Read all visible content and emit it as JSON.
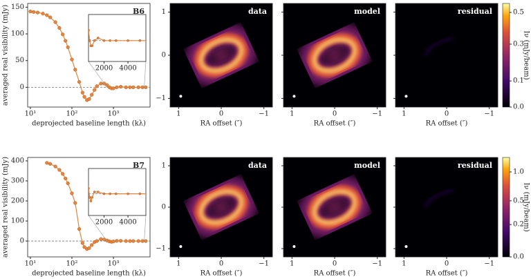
{
  "chart_data": [
    {
      "type": "line",
      "title": "B6",
      "log_x": true,
      "xlabel": "deprojected baseline length (kλ)",
      "ylabel": "averaged real visibility (mJy)",
      "xlim": [
        8.6,
        7600
      ],
      "ylim": [
        -37,
        157
      ],
      "xticks": [
        {
          "value": 10,
          "label": "10¹"
        },
        {
          "value": 100,
          "label": "10²"
        },
        {
          "value": 1000,
          "label": "10³"
        }
      ],
      "yticks": [
        0,
        50,
        100,
        150
      ],
      "hline": 0,
      "x": [
        10,
        12,
        15,
        20,
        25,
        30,
        40,
        50,
        60,
        70,
        80,
        100,
        120,
        150,
        180,
        200,
        230,
        260,
        300,
        350,
        400,
        500,
        600,
        700,
        800,
        900,
        1000,
        1200,
        1500,
        2000,
        2500,
        3000,
        4000,
        5000,
        6000
      ],
      "series": [
        {
          "color": "#e8833a",
          "values": [
            142,
            141,
            140,
            138,
            135,
            131,
            122,
            111,
            99,
            87,
            75,
            52,
            33,
            10,
            -10,
            -18,
            -24,
            -22,
            -14,
            -5,
            2,
            7,
            7,
            4,
            0,
            -2,
            -2,
            0,
            1,
            0,
            0,
            0,
            0,
            0,
            0
          ]
        }
      ],
      "inset": {
        "xlim": [
          700,
          5500
        ],
        "ylim": [
          -8,
          10
        ],
        "xticks": [
          2000,
          4000
        ]
      }
    },
    {
      "type": "image",
      "cmap": "inferno",
      "panels": [
        {
          "title": "data"
        },
        {
          "title": "model"
        },
        {
          "title": "residual"
        }
      ],
      "xlabel": "RA offset (″)",
      "xlim": [
        1.2,
        -1.2
      ],
      "ylim": [
        -1.2,
        1.2
      ],
      "xticks": [
        1,
        0,
        {
          "value": -1,
          "label": "−1"
        }
      ],
      "yticks": [
        {
          "value": -1,
          "label": "−1"
        },
        0,
        1
      ],
      "clabel": "Iν (mJy/beam)",
      "clim": [
        0,
        0.56
      ],
      "cpower": 0.8,
      "cticks": [
        {
          "value": 0,
          "label": "0.0"
        },
        0.1,
        0.3,
        0.5
      ]
    },
    {
      "type": "line",
      "title": "B7",
      "log_x": true,
      "xlabel": "deprojected baseline length (kλ)",
      "ylabel": "averaged real visibility (mJy)",
      "xlim": [
        8.6,
        7600
      ],
      "ylim": [
        -79,
        417
      ],
      "xticks": [
        {
          "value": 10,
          "label": "10¹"
        },
        {
          "value": 100,
          "label": "10²"
        },
        {
          "value": 1000,
          "label": "10³"
        }
      ],
      "yticks": [
        0,
        100,
        200,
        300,
        400
      ],
      "hline": 0,
      "x": [
        25,
        30,
        40,
        50,
        60,
        70,
        80,
        100,
        120,
        150,
        180,
        200,
        230,
        260,
        300,
        350,
        400,
        500,
        600,
        700,
        800,
        900,
        1000,
        1200,
        1500,
        2000,
        2500,
        3000,
        4000,
        5000,
        6000
      ],
      "series": [
        {
          "color": "#e8833a",
          "values": [
            390,
            385,
            372,
            355,
            335,
            312,
            288,
            238,
            190,
            60,
            -10,
            -30,
            -40,
            -35,
            -20,
            -5,
            0,
            10,
            8,
            3,
            -2,
            -4,
            -2,
            1,
            1,
            0,
            0,
            0,
            0,
            0,
            0
          ]
        }
      ],
      "inset": {
        "xlim": [
          700,
          5500
        ],
        "ylim": [
          -12,
          14
        ],
        "xticks": [
          2000,
          4000
        ]
      }
    },
    {
      "type": "image",
      "cmap": "inferno",
      "panels": [
        {
          "title": "data"
        },
        {
          "title": "model"
        },
        {
          "title": "residual"
        }
      ],
      "xlabel": "RA offset (″)",
      "xlim": [
        1.2,
        -1.2
      ],
      "ylim": [
        -1.2,
        1.2
      ],
      "xticks": [
        1,
        0,
        {
          "value": -1,
          "label": "−1"
        }
      ],
      "yticks": [
        {
          "value": -1,
          "label": "−1"
        },
        0,
        1
      ],
      "clabel": "Iν (mJy/beam)",
      "clim": [
        0,
        1.3
      ],
      "cpower": 0.6,
      "cticks": [
        {
          "value": 0,
          "label": "0.0"
        },
        0.2,
        0.5,
        {
          "value": 1,
          "label": "1.0"
        }
      ]
    }
  ]
}
